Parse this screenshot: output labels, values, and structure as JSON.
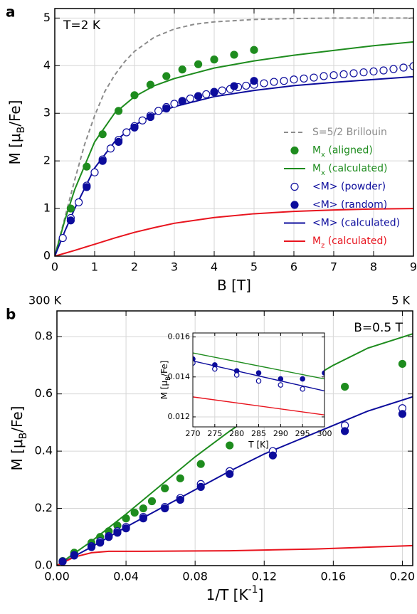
{
  "chart_data": [
    {
      "type": "line",
      "panel_label": "a",
      "annotation": "T=2 K",
      "xlabel": [
        {
          "text": "B [T]"
        }
      ],
      "ylabel": [
        {
          "text": "M [μ"
        },
        {
          "text": "B",
          "script": "sub"
        },
        {
          "text": "/Fe]"
        }
      ],
      "xlim": [
        0,
        9
      ],
      "ylim": [
        0,
        5.2
      ],
      "xticks": [
        0,
        1,
        2,
        3,
        4,
        5,
        6,
        7,
        8,
        9
      ],
      "yticks": [
        0,
        1,
        2,
        3,
        4,
        5
      ],
      "grid": true,
      "legend": "right",
      "series": [
        {
          "name": [
            {
              "text": "S=5/2 Brillouin"
            }
          ],
          "color": "#8c8c8c",
          "style": "dashed",
          "x": [
            0,
            0.25,
            0.5,
            0.75,
            1,
            1.25,
            1.5,
            1.75,
            2,
            2.5,
            3,
            3.5,
            4,
            5,
            6,
            7,
            8,
            9
          ],
          "values": [
            0,
            0.8,
            1.6,
            2.35,
            2.95,
            3.45,
            3.8,
            4.08,
            4.3,
            4.6,
            4.77,
            4.87,
            4.92,
            4.97,
            4.99,
            5,
            5,
            5
          ]
        },
        {
          "name": [
            {
              "text": "M"
            },
            {
              "text": "x",
              "script": "sub"
            },
            {
              "text": " (aligned)"
            }
          ],
          "color": "#1e8c1e",
          "style": "filled",
          "x": [
            0.4,
            0.8,
            1.2,
            1.6,
            2,
            2.4,
            2.8,
            3.2,
            3.6,
            4,
            4.5,
            5
          ],
          "values": [
            1.0,
            1.88,
            2.56,
            3.05,
            3.38,
            3.6,
            3.78,
            3.92,
            4.03,
            4.13,
            4.23,
            4.33
          ]
        },
        {
          "name": [
            {
              "text": "M"
            },
            {
              "text": "x",
              "script": "sub"
            },
            {
              "text": " (calculated)"
            }
          ],
          "color": "#1e8c1e",
          "style": "line",
          "x": [
            0,
            0.25,
            0.5,
            1,
            1.5,
            2,
            2.5,
            3,
            4,
            5,
            6,
            7,
            8,
            9
          ],
          "values": [
            0,
            0.75,
            1.4,
            2.4,
            3.0,
            3.35,
            3.58,
            3.73,
            3.95,
            4.1,
            4.22,
            4.32,
            4.42,
            4.5
          ]
        },
        {
          "name": [
            {
              "text": "<M> (powder)"
            }
          ],
          "color": "#0c0c9c",
          "style": "open",
          "x": [
            0.2,
            0.4,
            0.6,
            0.8,
            1,
            1.2,
            1.4,
            1.6,
            1.8,
            2,
            2.2,
            2.4,
            2.6,
            2.8,
            3,
            3.2,
            3.4,
            3.6,
            3.8,
            4,
            4.2,
            4.4,
            4.6,
            4.8,
            5,
            5.25,
            5.5,
            5.75,
            6,
            6.25,
            6.5,
            6.75,
            7,
            7.25,
            7.5,
            7.75,
            8,
            8.25,
            8.5,
            8.75,
            9
          ],
          "values": [
            0.38,
            0.8,
            1.13,
            1.48,
            1.76,
            2.03,
            2.26,
            2.44,
            2.6,
            2.73,
            2.85,
            2.95,
            3.05,
            3.13,
            3.2,
            3.26,
            3.31,
            3.36,
            3.4,
            3.44,
            3.48,
            3.51,
            3.55,
            3.58,
            3.6,
            3.63,
            3.66,
            3.68,
            3.71,
            3.73,
            3.75,
            3.78,
            3.8,
            3.82,
            3.84,
            3.86,
            3.88,
            3.9,
            3.93,
            3.96,
            3.99
          ]
        },
        {
          "name": [
            {
              "text": "<M> (random)"
            }
          ],
          "color": "#0c0c9c",
          "style": "filled",
          "x": [
            0.4,
            0.8,
            1.2,
            1.6,
            2,
            2.4,
            2.8,
            3.2,
            3.6,
            4,
            4.5,
            5
          ],
          "values": [
            0.75,
            1.45,
            2.0,
            2.4,
            2.7,
            2.92,
            3.1,
            3.25,
            3.36,
            3.45,
            3.57,
            3.68
          ]
        },
        {
          "name": [
            {
              "text": "<M> (calculated)"
            }
          ],
          "color": "#0c0c9c",
          "style": "line",
          "x": [
            0,
            0.25,
            0.5,
            1,
            1.5,
            2,
            2.5,
            3,
            4,
            5,
            6,
            7,
            8,
            9
          ],
          "values": [
            0,
            0.52,
            1.0,
            1.85,
            2.4,
            2.75,
            2.98,
            3.14,
            3.35,
            3.48,
            3.58,
            3.65,
            3.71,
            3.77
          ]
        },
        {
          "name": [
            {
              "text": "M"
            },
            {
              "text": "z",
              "script": "sub"
            },
            {
              "text": " (calculated)"
            }
          ],
          "color": "#e8141e",
          "style": "line",
          "x": [
            0,
            0.25,
            0.5,
            1,
            1.5,
            2,
            2.5,
            3,
            4,
            5,
            6,
            7,
            8,
            9
          ],
          "values": [
            0,
            0.06,
            0.12,
            0.25,
            0.38,
            0.5,
            0.6,
            0.69,
            0.81,
            0.89,
            0.94,
            0.97,
            0.99,
            1.0
          ]
        }
      ]
    },
    {
      "type": "line",
      "panel_label": "b",
      "annotation": "B=0.5 T",
      "top_axis_labels": [
        "300 K",
        "5 K"
      ],
      "xlabel": [
        {
          "text": "1/T [K"
        },
        {
          "text": "-1",
          "script": "super"
        },
        {
          "text": "]"
        }
      ],
      "ylabel": [
        {
          "text": "M [μ"
        },
        {
          "text": "B",
          "script": "sub"
        },
        {
          "text": "/Fe]"
        }
      ],
      "xlim": [
        0,
        0.206
      ],
      "ylim": [
        0,
        0.89
      ],
      "xticks": [
        {
          "value": 0,
          "label": "0.00"
        },
        0.04,
        0.08,
        0.12,
        0.16,
        {
          "value": 0.2,
          "label": "0.20"
        }
      ],
      "yticks": [
        {
          "value": 0,
          "label": "0.0"
        },
        0.2,
        0.4,
        0.6,
        0.8
      ],
      "grid": true,
      "series": [
        {
          "color": "#1e8c1e",
          "style": "line",
          "x": [
            0,
            0.02,
            0.04,
            0.06,
            0.08,
            0.1,
            0.12,
            0.14,
            0.16,
            0.18,
            0.206
          ],
          "values": [
            0,
            0.085,
            0.18,
            0.28,
            0.38,
            0.47,
            0.55,
            0.63,
            0.7,
            0.76,
            0.81
          ]
        },
        {
          "color": "#1e8c1e",
          "style": "filled",
          "x": [
            0.0033,
            0.01,
            0.02,
            0.025,
            0.03,
            0.035,
            0.04,
            0.045,
            0.05,
            0.055,
            0.0625,
            0.0714,
            0.0833,
            0.1,
            0.125,
            0.1667,
            0.2
          ],
          "values": [
            0.016,
            0.045,
            0.08,
            0.1,
            0.12,
            0.14,
            0.165,
            0.185,
            0.2,
            0.225,
            0.27,
            0.305,
            0.355,
            0.42,
            0.505,
            0.625,
            0.705
          ]
        },
        {
          "color": "#0c0c9c",
          "style": "open",
          "x": [
            0.0033,
            0.01,
            0.02,
            0.025,
            0.03,
            0.035,
            0.04,
            0.05,
            0.0625,
            0.0714,
            0.0833,
            0.1,
            0.125,
            0.1667,
            0.2
          ],
          "values": [
            0.015,
            0.037,
            0.068,
            0.085,
            0.103,
            0.12,
            0.135,
            0.17,
            0.205,
            0.236,
            0.285,
            0.33,
            0.4,
            0.49,
            0.55
          ]
        },
        {
          "color": "#0c0c9c",
          "style": "filled",
          "x": [
            0.0033,
            0.01,
            0.02,
            0.025,
            0.03,
            0.035,
            0.04,
            0.05,
            0.0625,
            0.0714,
            0.0833,
            0.1,
            0.125,
            0.1667,
            0.2
          ],
          "values": [
            0.014,
            0.035,
            0.065,
            0.08,
            0.1,
            0.115,
            0.13,
            0.165,
            0.2,
            0.23,
            0.275,
            0.32,
            0.385,
            0.47,
            0.53
          ]
        },
        {
          "color": "#0c0c9c",
          "style": "line",
          "x": [
            0,
            0.02,
            0.04,
            0.06,
            0.08,
            0.1,
            0.12,
            0.14,
            0.16,
            0.18,
            0.206
          ],
          "values": [
            0,
            0.065,
            0.135,
            0.2,
            0.265,
            0.33,
            0.39,
            0.44,
            0.49,
            0.54,
            0.59
          ]
        },
        {
          "color": "#e8141e",
          "style": "line",
          "x": [
            0,
            0.01,
            0.02,
            0.03,
            0.05,
            0.1,
            0.15,
            0.206
          ],
          "values": [
            0,
            0.03,
            0.045,
            0.05,
            0.05,
            0.052,
            0.058,
            0.07
          ]
        }
      ]
    },
    {
      "type": "line",
      "xlabel": [
        {
          "text": "T [K]"
        }
      ],
      "ylabel": [
        {
          "text": "M [μ"
        },
        {
          "text": "B",
          "script": "sub"
        },
        {
          "text": "/Fe]"
        }
      ],
      "xlim": [
        270,
        300
      ],
      "ylim": [
        0.0115,
        0.0162
      ],
      "xticks": [
        270,
        275,
        280,
        285,
        290,
        295,
        300
      ],
      "yticks": [
        0.012,
        0.014,
        0.016
      ],
      "grid": true,
      "series": [
        {
          "color": "#1e8c1e",
          "style": "line",
          "x": [
            270,
            300
          ],
          "values": [
            0.0152,
            0.0139
          ]
        },
        {
          "color": "#0c0c9c",
          "style": "line",
          "x": [
            270,
            300
          ],
          "values": [
            0.0148,
            0.0133
          ]
        },
        {
          "color": "#e8141e",
          "style": "line",
          "x": [
            270,
            300
          ],
          "values": [
            0.013,
            0.0121
          ]
        },
        {
          "color": "#0c0c9c",
          "style": "filled",
          "x": [
            270,
            275,
            280,
            285,
            290,
            295,
            300
          ],
          "values": [
            0.0149,
            0.0146,
            0.0143,
            0.0142,
            0.0139,
            0.0139,
            0.0142
          ]
        },
        {
          "color": "#0c0c9c",
          "style": "open",
          "x": [
            270,
            275,
            280,
            285,
            290,
            295
          ],
          "values": [
            0.0147,
            0.0144,
            0.0141,
            0.0138,
            0.0136,
            0.0134
          ]
        }
      ]
    }
  ]
}
